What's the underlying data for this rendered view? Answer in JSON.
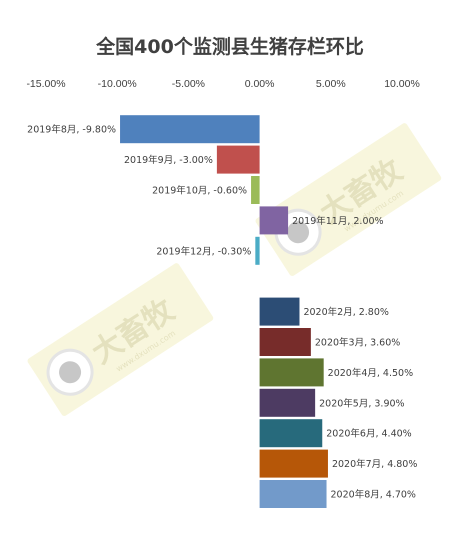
{
  "chart_data": {
    "type": "bar",
    "orientation": "horizontal",
    "title": "全国400个监测县生猪存栏环比",
    "xlim": [
      -15,
      10
    ],
    "ticks": [
      "-15.00%",
      "-10.00%",
      "-5.00%",
      "0.00%",
      "5.00%",
      "10.00%"
    ],
    "tick_values": [
      -15,
      -10,
      -5,
      0,
      5,
      10
    ],
    "grid": false,
    "categories": [
      "2019年8月",
      "2019年9月",
      "2019年10月",
      "2019年11月",
      "2019年12月",
      "",
      "2020年2月",
      "2020年3月",
      "2020年4月",
      "2020年5月",
      "2020年6月",
      "2020年7月",
      "2020年8月"
    ],
    "values": [
      -9.8,
      -3.0,
      -0.6,
      2.0,
      -0.3,
      null,
      2.8,
      3.6,
      4.5,
      3.9,
      4.4,
      4.8,
      4.7
    ],
    "labels": [
      "2019年8月, -9.80%",
      "2019年9月, -3.00%",
      "2019年10月, -0.60%",
      "2019年11月, 2.00%",
      "2019年12月, -0.30%",
      "",
      "2020年2月, 2.80%",
      "2020年3月, 3.60%",
      "2020年4月, 4.50%",
      "2020年5月, 3.90%",
      "2020年6月, 4.40%",
      "2020年7月, 4.80%",
      "2020年8月, 4.70%"
    ],
    "colors": [
      "#4F81BD",
      "#C0504D",
      "#9BBB59",
      "#8064A2",
      "#4BACC6",
      "",
      "#2C4D75",
      "#772C2A",
      "#5F7530",
      "#4D3B62",
      "#276A7C",
      "#B65708",
      "#729ACA"
    ]
  },
  "watermark": {
    "brand": "大畜牧",
    "url": "www.dxumu.com",
    "color": "#E8E4A0"
  }
}
